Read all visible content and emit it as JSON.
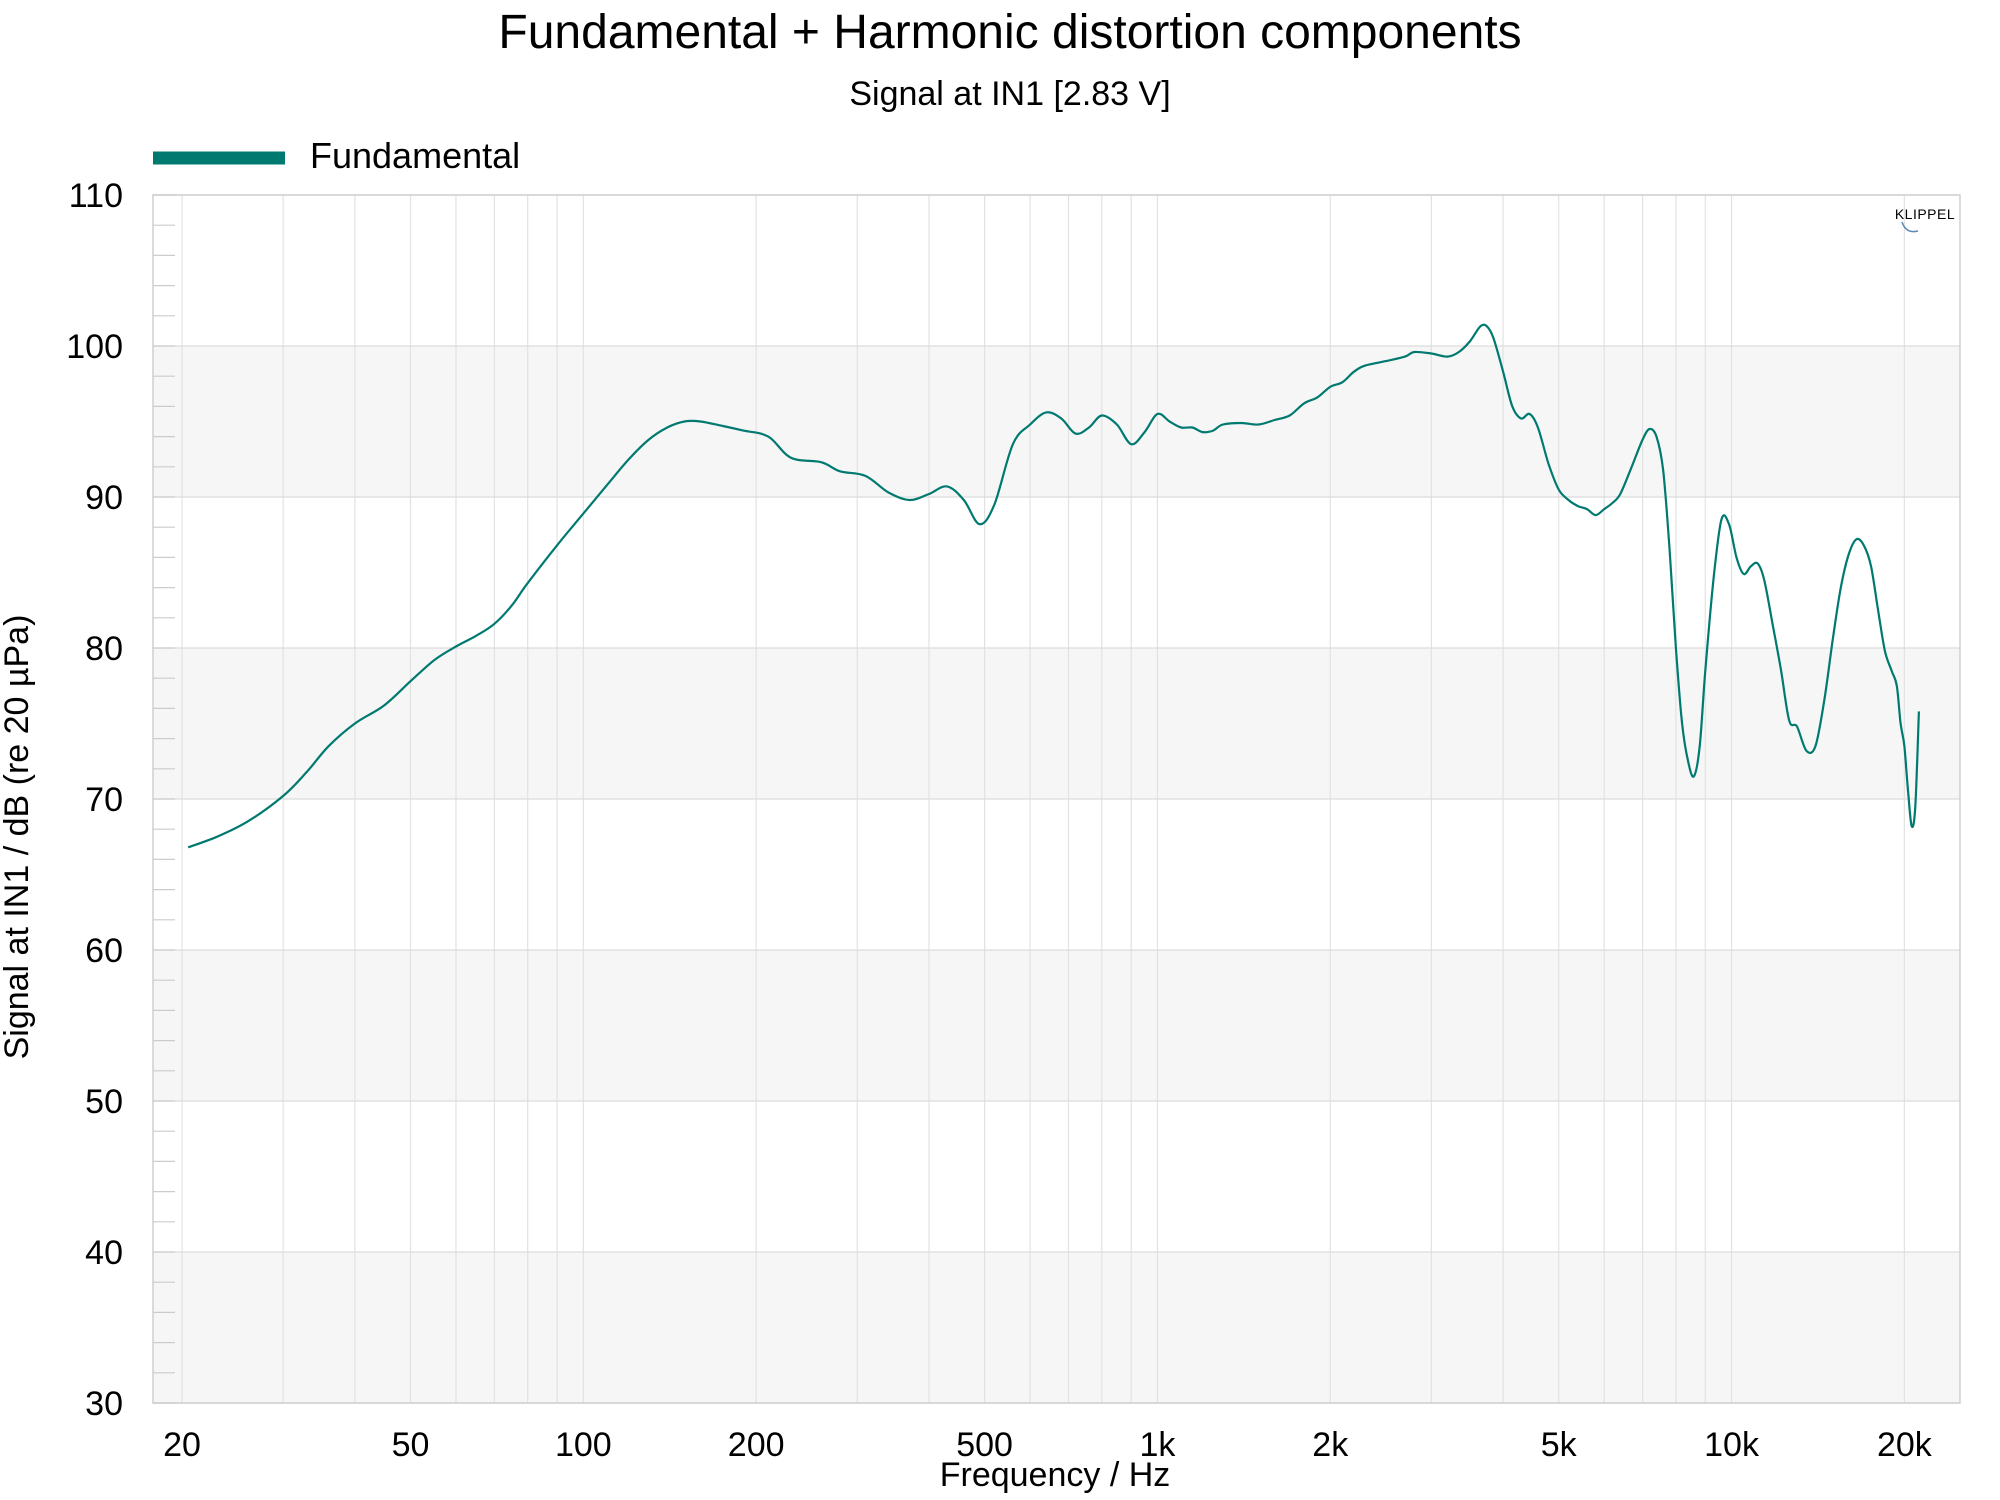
{
  "chart_data": {
    "type": "line",
    "title": "Fundamental + Harmonic distortion components",
    "subtitle": "Signal at IN1 [2.83 V]",
    "xlabel": "Frequency / Hz",
    "ylabel": "Signal at IN1 / dB (re 20 µPa)",
    "x_scale": "log",
    "xlim": [
      17.8,
      25000
    ],
    "ylim": [
      30,
      110
    ],
    "x_ticks": [
      {
        "value": 20,
        "label": "20"
      },
      {
        "value": 50,
        "label": "50"
      },
      {
        "value": 100,
        "label": "100"
      },
      {
        "value": 200,
        "label": "200"
      },
      {
        "value": 500,
        "label": "500"
      },
      {
        "value": 1000,
        "label": "1k"
      },
      {
        "value": 2000,
        "label": "2k"
      },
      {
        "value": 5000,
        "label": "5k"
      },
      {
        "value": 10000,
        "label": "10k"
      },
      {
        "value": 20000,
        "label": "20k"
      }
    ],
    "y_ticks": [
      30,
      40,
      50,
      60,
      70,
      80,
      90,
      100,
      110
    ],
    "grid": true,
    "legend_position": "top-left",
    "series": [
      {
        "name": "Fundamental",
        "color": "#007a70",
        "points": [
          [
            20.5,
            66.8
          ],
          [
            23,
            67.5
          ],
          [
            26,
            68.5
          ],
          [
            30,
            70.2
          ],
          [
            33,
            71.8
          ],
          [
            36,
            73.5
          ],
          [
            40,
            75.0
          ],
          [
            45,
            76.2
          ],
          [
            50,
            77.8
          ],
          [
            55,
            79.2
          ],
          [
            60,
            80.1
          ],
          [
            65,
            80.8
          ],
          [
            70,
            81.6
          ],
          [
            75,
            82.8
          ],
          [
            80,
            84.3
          ],
          [
            90,
            86.8
          ],
          [
            100,
            88.9
          ],
          [
            110,
            90.8
          ],
          [
            120,
            92.5
          ],
          [
            130,
            93.8
          ],
          [
            140,
            94.6
          ],
          [
            150,
            95.0
          ],
          [
            160,
            95.0
          ],
          [
            175,
            94.7
          ],
          [
            190,
            94.4
          ],
          [
            210,
            94.0
          ],
          [
            230,
            92.6
          ],
          [
            260,
            92.3
          ],
          [
            280,
            91.7
          ],
          [
            310,
            91.4
          ],
          [
            340,
            90.3
          ],
          [
            370,
            89.8
          ],
          [
            400,
            90.2
          ],
          [
            430,
            90.7
          ],
          [
            460,
            89.8
          ],
          [
            490,
            88.2
          ],
          [
            520,
            89.5
          ],
          [
            560,
            93.5
          ],
          [
            600,
            94.8
          ],
          [
            640,
            95.6
          ],
          [
            680,
            95.2
          ],
          [
            720,
            94.2
          ],
          [
            760,
            94.6
          ],
          [
            800,
            95.4
          ],
          [
            850,
            94.8
          ],
          [
            900,
            93.5
          ],
          [
            950,
            94.3
          ],
          [
            1000,
            95.5
          ],
          [
            1050,
            95.0
          ],
          [
            1100,
            94.6
          ],
          [
            1150,
            94.6
          ],
          [
            1200,
            94.3
          ],
          [
            1250,
            94.4
          ],
          [
            1300,
            94.8
          ],
          [
            1400,
            94.9
          ],
          [
            1500,
            94.8
          ],
          [
            1600,
            95.1
          ],
          [
            1700,
            95.4
          ],
          [
            1800,
            96.2
          ],
          [
            1900,
            96.6
          ],
          [
            2000,
            97.3
          ],
          [
            2100,
            97.6
          ],
          [
            2200,
            98.3
          ],
          [
            2300,
            98.7
          ],
          [
            2500,
            99.0
          ],
          [
            2700,
            99.3
          ],
          [
            2800,
            99.6
          ],
          [
            3000,
            99.5
          ],
          [
            3200,
            99.3
          ],
          [
            3350,
            99.6
          ],
          [
            3500,
            100.3
          ],
          [
            3650,
            101.3
          ],
          [
            3750,
            101.3
          ],
          [
            3850,
            100.5
          ],
          [
            4000,
            98.3
          ],
          [
            4150,
            96.0
          ],
          [
            4300,
            95.2
          ],
          [
            4450,
            95.5
          ],
          [
            4600,
            94.6
          ],
          [
            4800,
            92.2
          ],
          [
            5000,
            90.5
          ],
          [
            5200,
            89.8
          ],
          [
            5400,
            89.4
          ],
          [
            5600,
            89.2
          ],
          [
            5800,
            88.8
          ],
          [
            6000,
            89.2
          ],
          [
            6200,
            89.6
          ],
          [
            6400,
            90.2
          ],
          [
            6700,
            92.0
          ],
          [
            7000,
            93.8
          ],
          [
            7200,
            94.5
          ],
          [
            7400,
            94.0
          ],
          [
            7600,
            91.8
          ],
          [
            7800,
            86.5
          ],
          [
            8000,
            80.0
          ],
          [
            8200,
            75.0
          ],
          [
            8400,
            72.5
          ],
          [
            8600,
            71.5
          ],
          [
            8800,
            73.5
          ],
          [
            9000,
            78.5
          ],
          [
            9300,
            84.5
          ],
          [
            9600,
            88.5
          ],
          [
            9900,
            88.2
          ],
          [
            10200,
            86.0
          ],
          [
            10500,
            84.9
          ],
          [
            10800,
            85.4
          ],
          [
            11100,
            85.6
          ],
          [
            11400,
            84.5
          ],
          [
            11800,
            81.5
          ],
          [
            12200,
            78.5
          ],
          [
            12600,
            75.2
          ],
          [
            13000,
            74.8
          ],
          [
            13500,
            73.2
          ],
          [
            14000,
            73.5
          ],
          [
            14500,
            76.5
          ],
          [
            15000,
            80.5
          ],
          [
            15500,
            84.0
          ],
          [
            16000,
            86.2
          ],
          [
            16500,
            87.2
          ],
          [
            17000,
            86.8
          ],
          [
            17500,
            85.4
          ],
          [
            18000,
            82.5
          ],
          [
            18500,
            79.8
          ],
          [
            19000,
            78.5
          ],
          [
            19400,
            77.5
          ],
          [
            19700,
            75.0
          ],
          [
            20000,
            73.5
          ],
          [
            20300,
            70.5
          ],
          [
            20600,
            68.2
          ],
          [
            20900,
            69.5
          ],
          [
            21200,
            75.8
          ]
        ]
      }
    ]
  },
  "watermark": "KLIPPEL"
}
